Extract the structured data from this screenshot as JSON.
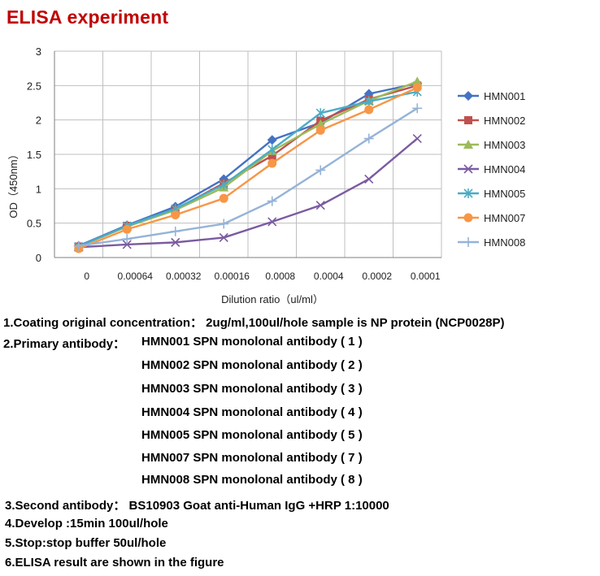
{
  "title": "ELISA experiment",
  "chart_data": {
    "type": "line",
    "categories": [
      "0",
      "0.00064",
      "0.00032",
      "0.00016",
      "0.0008",
      "0.0004",
      "0.0002",
      "0.0001"
    ],
    "xlabel": "Dilution ratio（ul/ml）",
    "ylabel": "OD（450nm）",
    "ylim": [
      0,
      3
    ],
    "yticks": [
      "0",
      "0.5",
      "1",
      "1.5",
      "2",
      "2.5",
      "3"
    ],
    "grid": "horizontal",
    "legend": "right",
    "series": [
      {
        "name": "HMN001",
        "color": "#4472c4",
        "marker": "diamond",
        "values": [
          0.17,
          0.47,
          0.74,
          1.14,
          1.71,
          1.96,
          2.38,
          2.53
        ]
      },
      {
        "name": "HMN002",
        "color": "#c0504d",
        "marker": "square",
        "values": [
          0.16,
          0.46,
          0.7,
          1.08,
          1.48,
          1.99,
          2.3,
          2.5
        ]
      },
      {
        "name": "HMN003",
        "color": "#9bbb59",
        "marker": "triangle",
        "values": [
          0.16,
          0.45,
          0.69,
          1.02,
          1.55,
          1.94,
          2.28,
          2.56
        ]
      },
      {
        "name": "HMN004",
        "color": "#7b5ba1",
        "marker": "x",
        "values": [
          0.15,
          0.19,
          0.22,
          0.29,
          0.52,
          0.76,
          1.14,
          1.73
        ]
      },
      {
        "name": "HMN005",
        "color": "#4bacc6",
        "marker": "star",
        "values": [
          0.16,
          0.46,
          0.71,
          1.06,
          1.57,
          2.1,
          2.27,
          2.41
        ]
      },
      {
        "name": "HMN007",
        "color": "#f79646",
        "marker": "circle",
        "values": [
          0.13,
          0.41,
          0.62,
          0.86,
          1.37,
          1.85,
          2.15,
          2.47
        ]
      },
      {
        "name": "HMN008",
        "color": "#95b3d7",
        "marker": "plus",
        "values": [
          0.17,
          0.27,
          0.38,
          0.49,
          0.82,
          1.27,
          1.73,
          2.17
        ]
      }
    ]
  },
  "notes": [
    "1.Coating original concentration： 2ug/ml,100ul/hole sample is NP protein (NCP0028P)",
    "2.Primary antibody：",
    "HMN001  SPN monolonal antibody ( 1 )",
    "HMN002  SPN monolonal antibody ( 2 )",
    "HMN003  SPN monolonal antibody ( 3 )",
    "HMN004  SPN monolonal antibody ( 4 )",
    "HMN005  SPN monolonal antibody ( 5 )",
    "HMN007  SPN monolonal antibody ( 7 )",
    "HMN008  SPN monolonal antibody ( 8 )",
    "3.Second antibody： BS10903  Goat anti-Human IgG +HRP  1:10000",
    "4.Develop :15min  100ul/hole",
    "5.Stop:stop buffer  50ul/hole",
    "6.ELISA result are shown in the figure"
  ]
}
